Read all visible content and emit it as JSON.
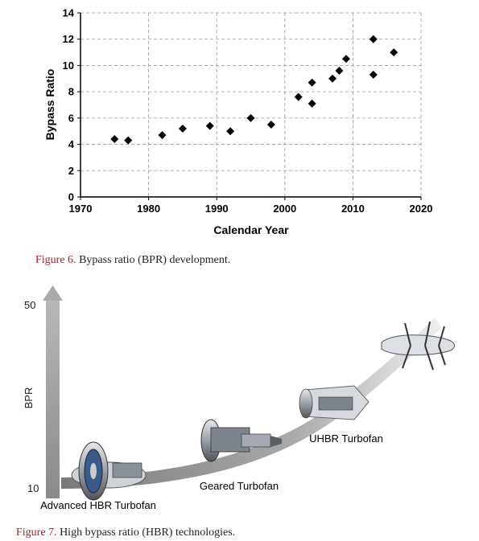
{
  "chart_data": {
    "type": "scatter",
    "title": "",
    "xlabel": "Calendar Year",
    "ylabel": "Bypass Ratio",
    "xlim": [
      1970,
      2020
    ],
    "ylim": [
      0,
      14
    ],
    "xticks": [
      "1970",
      "1980",
      "1990",
      "2000",
      "2010",
      "2020"
    ],
    "yticks": [
      "0",
      "2",
      "4",
      "6",
      "8",
      "10",
      "12",
      "14"
    ],
    "grid": true,
    "marker": "diamond",
    "points": [
      {
        "x": 1975,
        "y": 4.4
      },
      {
        "x": 1977,
        "y": 4.3
      },
      {
        "x": 1982,
        "y": 4.7
      },
      {
        "x": 1985,
        "y": 5.2
      },
      {
        "x": 1989,
        "y": 5.4
      },
      {
        "x": 1992,
        "y": 5.0
      },
      {
        "x": 1995,
        "y": 6.0
      },
      {
        "x": 1998,
        "y": 5.5
      },
      {
        "x": 2002,
        "y": 7.6
      },
      {
        "x": 2004,
        "y": 8.7
      },
      {
        "x": 2004,
        "y": 7.1
      },
      {
        "x": 2007,
        "y": 9.0
      },
      {
        "x": 2008,
        "y": 9.6
      },
      {
        "x": 2009,
        "y": 10.5
      },
      {
        "x": 2013,
        "y": 12.0
      },
      {
        "x": 2013,
        "y": 9.3
      },
      {
        "x": 2016,
        "y": 11.0
      }
    ]
  },
  "captions": {
    "fig6_label": "Figure 6.",
    "fig6_text": " Bypass ratio (BPR) development.",
    "fig7_label": "Figure 7.",
    "fig7_text": " High bypass ratio (HBR) technologies."
  },
  "diagram": {
    "axis_label": "BPR",
    "axis_top": "50",
    "axis_bottom": "10",
    "engines": [
      {
        "label": "Advanced HBR Turbofan"
      },
      {
        "label": "Geared Turbofan"
      },
      {
        "label": "UHBR Turbofan"
      }
    ]
  },
  "colors": {
    "caption_accent": "#a0282d",
    "marker": "#000000",
    "grid": "#9a9a9a"
  }
}
